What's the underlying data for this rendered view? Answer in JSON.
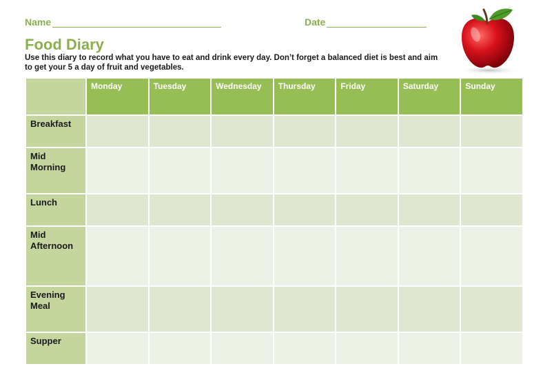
{
  "form": {
    "name_label": "Name",
    "date_label": "Date",
    "title": "Food Diary",
    "instructions": "Use this diary to record what you have to eat and drink every day.  Don’t forget a balanced diet is best and aim to get your 5 a day of fruit and vegetables."
  },
  "table": {
    "days": [
      "Monday",
      "Tuesday",
      "Wednesday",
      "Thursday",
      "Friday",
      "Saturday",
      "Sunday"
    ],
    "meals": [
      "Breakfast",
      "Mid Morning",
      "Lunch",
      "Mid Afternoon",
      "Evening Meal",
      "Supper"
    ]
  },
  "colors": {
    "accent_green": "#8cb04d",
    "header_green": "#96be55",
    "label_green": "#c4d59e",
    "apple_red": "#d8121c"
  },
  "icons": {
    "apple": "apple-icon"
  }
}
